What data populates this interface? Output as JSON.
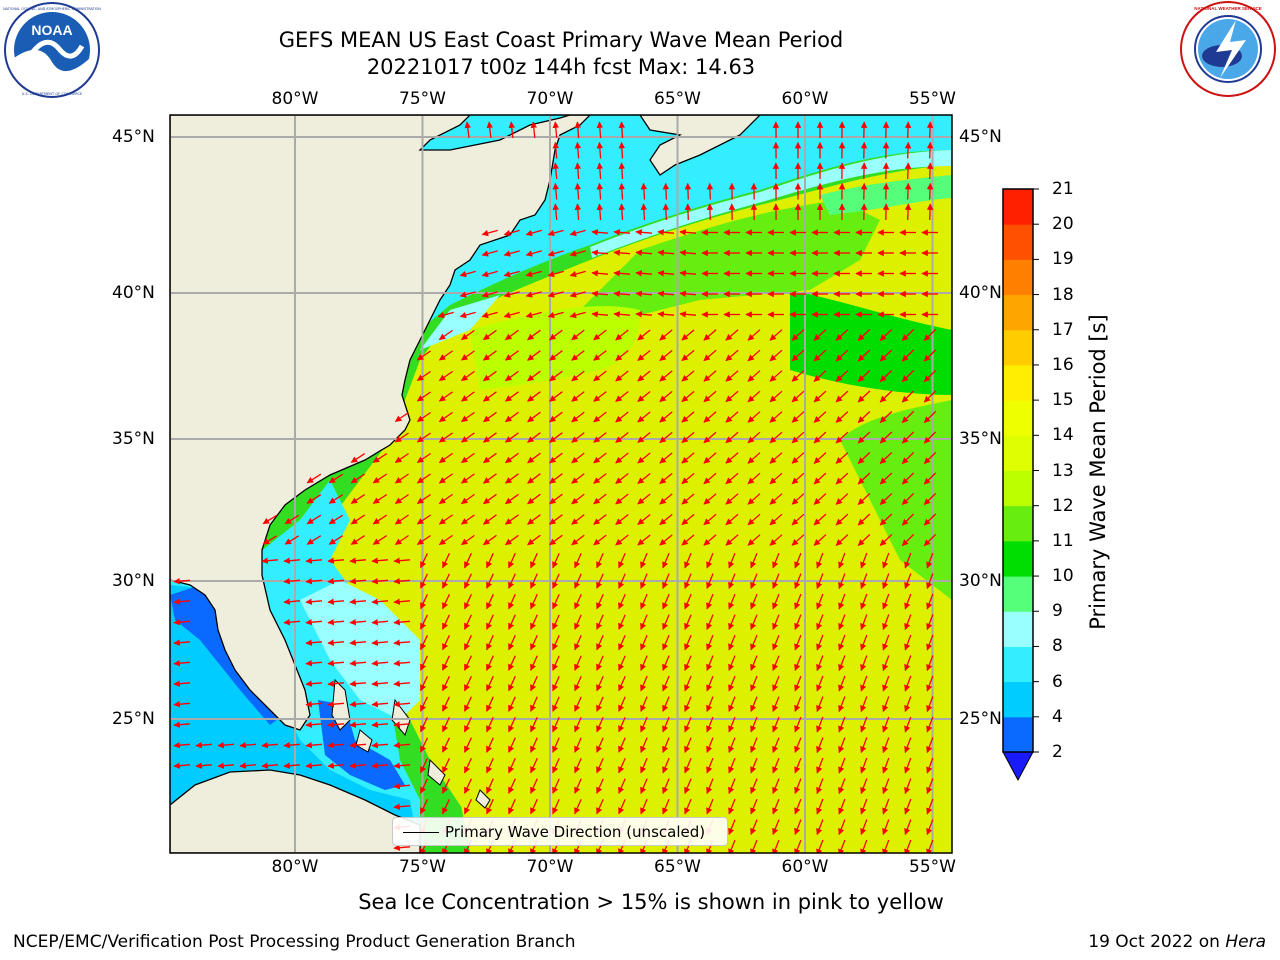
{
  "title": {
    "line1": "GEFS MEAN US East Coast Primary Wave Mean Period",
    "line2": "20221017 t00z 144h fcst   Max: 14.63"
  },
  "logos": {
    "left": "NOAA",
    "left_ring_top": "NATIONAL OCEANIC AND ATMOSPHERIC ADMINISTRATION",
    "left_ring_bottom": "U.S. DEPARTMENT OF COMMERCE",
    "right_ring": "NATIONAL WEATHER SERVICE"
  },
  "map": {
    "lon_labels": [
      "80°W",
      "75°W",
      "70°W",
      "65°W",
      "60°W",
      "55°W"
    ],
    "lat_labels": [
      "45°N",
      "40°N",
      "35°N",
      "30°N",
      "25°N"
    ],
    "lon_range": [
      -85,
      -55
    ],
    "lat_range": [
      20.5,
      45.8
    ],
    "gridlines": true
  },
  "legend": {
    "label": "Primary Wave Direction (unscaled)"
  },
  "colorbar": {
    "title": "Primary Wave Mean Period [s]",
    "ticks": [
      "2",
      "4",
      "6",
      "8",
      "9",
      "10",
      "11",
      "12",
      "13",
      "14",
      "15",
      "16",
      "17",
      "18",
      "19",
      "20",
      "21"
    ],
    "colors": [
      "#0a6aff",
      "#00ccff",
      "#33eeff",
      "#99ffff",
      "#55ff7a",
      "#00dd00",
      "#66ee11",
      "#bbff00",
      "#ddff00",
      "#eeff00",
      "#ffee00",
      "#ffcc00",
      "#ffa500",
      "#ff8000",
      "#ff5000",
      "#ff2000"
    ],
    "extend_color": "#1a1aff"
  },
  "chart_data": {
    "type": "heatmap",
    "variable": "Primary Wave Mean Period",
    "units": "s",
    "max": 14.63,
    "regions": [
      {
        "period_s": 5,
        "area": "Gulf of Maine and Northeast coast"
      },
      {
        "period_s": 10,
        "area": "shelf break off New England and mid-Atlantic"
      },
      {
        "period_s": 11,
        "area": "band near 38-42N east of 70W"
      },
      {
        "period_s": 13,
        "area": "open western Atlantic south of 37N"
      },
      {
        "period_s": 3,
        "area": "Straits of Florida and Bahamas channels"
      }
    ]
  },
  "sea_ice_note": "Sea Ice Concentration > 15% is shown in pink to yellow",
  "footer": {
    "left": "NCEP/EMC/Verification Post Processing Product Generation Branch",
    "right_date": "19 Oct 2022 on ",
    "right_host": "Hera"
  }
}
